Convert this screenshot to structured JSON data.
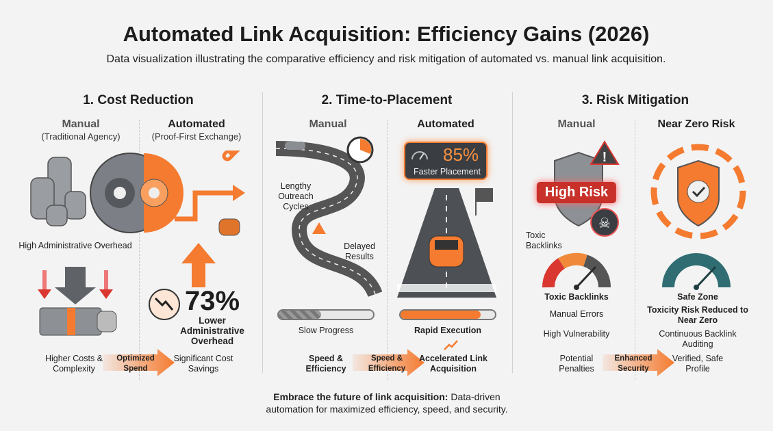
{
  "header": {
    "title": "Automated Link Acquisition: Efficiency Gains (2026)",
    "subtitle": "Data visualization illustrating the comparative efficiency and risk mitigation of automated vs. manual link acquisition."
  },
  "colors": {
    "accent": "#f47b30",
    "gray": "#6b6e73",
    "danger": "#d9372f",
    "teal": "#2f6d72"
  },
  "sections": [
    {
      "title": "1. Cost Reduction",
      "manual": {
        "heading": "Manual",
        "sub": "(Traditional Agency)",
        "callout": "High Administrative Overhead",
        "result": "Higher Costs & Complexity"
      },
      "automated": {
        "heading": "Automated",
        "sub": "(Proof-First Exchange)",
        "stat": "73%",
        "stat_label": "Lower Administrative Overhead",
        "result": "Significant Cost Savings"
      },
      "arrow": "Optimized Spend"
    },
    {
      "title": "2. Time-to-Placement",
      "manual": {
        "heading": "Manual",
        "callout1": "Lengthy Outreach Cycles",
        "callout2": "Delayed Results",
        "progress_label": "Slow Progress",
        "progress": 0.45,
        "result": "Speed & Efficiency"
      },
      "automated": {
        "heading": "Automated",
        "stat": "85%",
        "stat_label": "Faster Placement",
        "progress_label": "Rapid Execution",
        "progress": 0.85,
        "result": "Accelerated Link Acquisition"
      },
      "arrow": "Speed & Efficiency"
    },
    {
      "title": "3. Risk Mitigation",
      "manual": {
        "heading": "Manual",
        "badge": "High Risk",
        "callout": "Toxic Backlinks",
        "gauge_label": "Toxic Backlinks",
        "item1": "Manual Errors",
        "item2": "High Vulnerability",
        "result": "Potential Penalties"
      },
      "automated": {
        "heading": "Near Zero Risk",
        "gauge_label": "Safe Zone",
        "stat_label": "Toxicity Risk Reduced to Near Zero",
        "item1": "Continuous Backlink Auditing",
        "result": "Verified, Safe Profile"
      },
      "arrow": "Enhanced Security"
    }
  ],
  "footer": {
    "lead": "Embrace the future of link acquisition:",
    "text1": " Data-driven",
    "text2": "automation for maximized efficiency, speed, and security."
  }
}
